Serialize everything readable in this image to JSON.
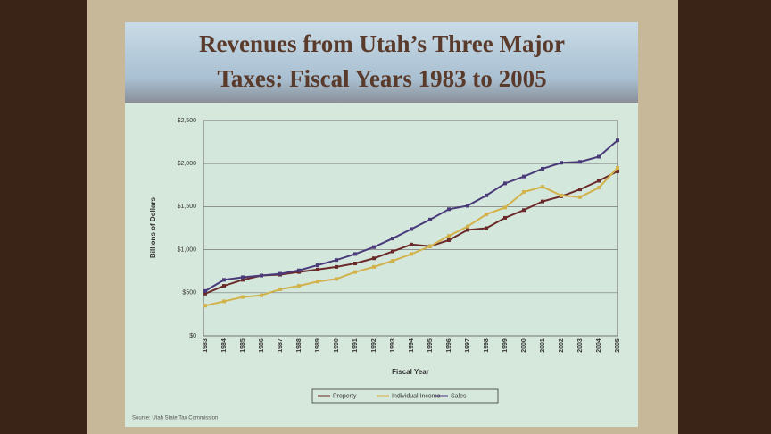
{
  "chart_data": {
    "type": "line",
    "title": [
      "Revenues from Utah’s Three Major",
      "Taxes: Fiscal Years 1983 to 2005"
    ],
    "x_label": "Fiscal Year",
    "y_label": "Billions of Dollars",
    "source": "Source: Utah State Tax Commission",
    "categories": [
      "1983",
      "1984",
      "1985",
      "1986",
      "1987",
      "1988",
      "1989",
      "1990",
      "1991",
      "1992",
      "1993",
      "1994",
      "1995",
      "1996",
      "1997",
      "1998",
      "1999",
      "2000",
      "2001",
      "2002",
      "2003",
      "2004",
      "2005"
    ],
    "series": [
      {
        "name": "Property",
        "color": "#6b2a2a",
        "values": [
          490,
          580,
          650,
          700,
          710,
          740,
          770,
          800,
          840,
          900,
          980,
          1060,
          1040,
          1110,
          1230,
          1250,
          1370,
          1460,
          1560,
          1620,
          1700,
          1800,
          1910
        ]
      },
      {
        "name": "Individual Income",
        "color": "#d2b24a",
        "values": [
          350,
          400,
          450,
          470,
          540,
          580,
          630,
          660,
          740,
          800,
          870,
          950,
          1040,
          1160,
          1270,
          1410,
          1490,
          1670,
          1730,
          1630,
          1610,
          1720,
          1950
        ]
      },
      {
        "name": "Sales",
        "color": "#4a3a7a",
        "values": [
          520,
          650,
          680,
          700,
          720,
          760,
          820,
          880,
          950,
          1030,
          1130,
          1240,
          1350,
          1470,
          1510,
          1630,
          1770,
          1850,
          1940,
          2010,
          2020,
          2080,
          2270
        ]
      }
    ],
    "ylim": [
      0,
      2500
    ],
    "yticks": [
      {
        "value": 0,
        "label": "$0"
      },
      {
        "value": 500,
        "label": "$500"
      },
      {
        "value": 1000,
        "label": "$1,000"
      },
      {
        "value": 1500,
        "label": "$1,500"
      },
      {
        "value": 2000,
        "label": "$2,000"
      },
      {
        "value": 2500,
        "label": "$2,500"
      }
    ],
    "grid": true,
    "legend": "bottom"
  }
}
